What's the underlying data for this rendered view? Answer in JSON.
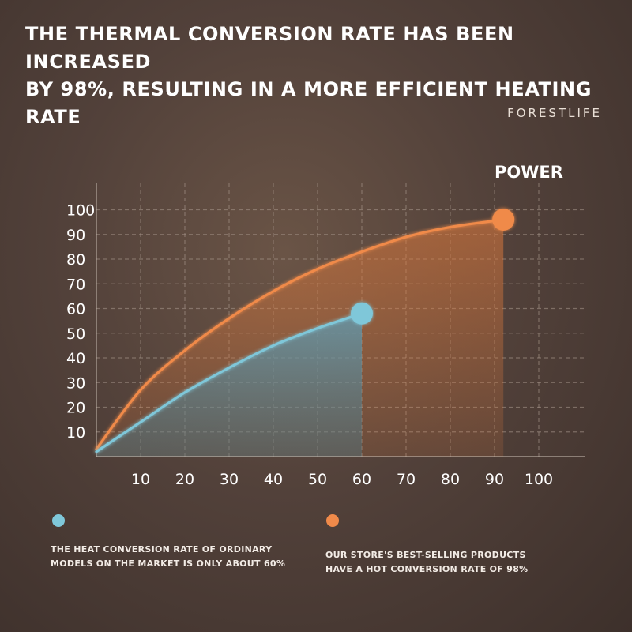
{
  "headline": {
    "line1": "THE THERMAL CONVERSION RATE HAS BEEN INCREASED",
    "line2": "BY 98%, RESULTING IN A MORE EFFICIENT HEATING RATE"
  },
  "brand": "FORESTLIFE",
  "chart_data": {
    "type": "area",
    "title": "POWER",
    "x_ticks": [
      10,
      20,
      30,
      40,
      50,
      60,
      70,
      80,
      90,
      100
    ],
    "y_ticks": [
      10,
      20,
      30,
      40,
      50,
      60,
      70,
      80,
      90,
      100
    ],
    "xlim": [
      0,
      105
    ],
    "ylim": [
      0,
      100
    ],
    "grid": true,
    "grid_style": "dashed",
    "series": [
      {
        "color": "#f08a4a",
        "x": [
          0,
          10,
          20,
          30,
          40,
          50,
          60,
          70,
          80,
          92
        ],
        "y": [
          3,
          27,
          43,
          56,
          67,
          76,
          83,
          89,
          93,
          96
        ],
        "end_marker": {
          "x": 92,
          "y": 96
        }
      },
      {
        "color": "#7fc7d9",
        "x": [
          0,
          10,
          20,
          30,
          40,
          50,
          60
        ],
        "y": [
          2,
          14,
          26,
          36,
          45,
          52,
          58
        ],
        "end_marker": {
          "x": 60,
          "y": 58
        }
      }
    ]
  },
  "legend": [
    {
      "color": "#7fc7d9",
      "line1": "THE HEAT CONVERSION RATE OF ORDINARY",
      "line2": "MODELS ON THE MARKET IS ONLY ABOUT 60%"
    },
    {
      "color": "#f08a4a",
      "line1": "OUR STORE'S BEST-SELLING PRODUCTS",
      "line2": "HAVE A HOT CONVERSION RATE OF 98%"
    }
  ]
}
